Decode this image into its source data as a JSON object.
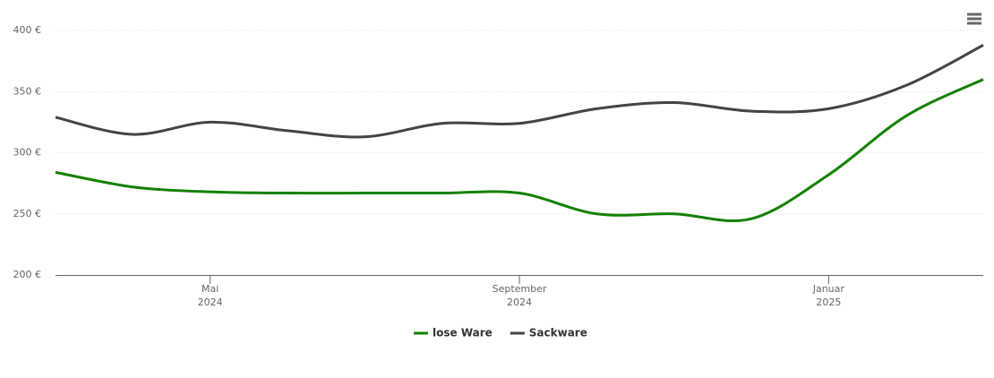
{
  "chart_data": {
    "type": "line",
    "x": [
      "2024-03",
      "2024-04",
      "2024-05",
      "2024-06",
      "2024-07",
      "2024-08",
      "2024-09",
      "2024-10",
      "2024-11",
      "2024-12",
      "2025-01",
      "2025-02",
      "2025-03"
    ],
    "xlim": [
      "2024-03",
      "2025-03"
    ],
    "xticks": [
      {
        "value": "2024-05",
        "label": [
          "Mai",
          "2024"
        ]
      },
      {
        "value": "2024-09",
        "label": [
          "September",
          "2024"
        ]
      },
      {
        "value": "2025-01",
        "label": [
          "Januar",
          "2025"
        ]
      }
    ],
    "ylim": [
      200,
      400
    ],
    "yticks": [
      {
        "value": 200,
        "label": "200 €"
      },
      {
        "value": 250,
        "label": "250 €"
      },
      {
        "value": 300,
        "label": "300 €"
      },
      {
        "value": 350,
        "label": "350 €"
      },
      {
        "value": 400,
        "label": "400 €"
      }
    ],
    "grid": true,
    "legend": "bottom",
    "series": [
      {
        "name": "lose Ware",
        "color": "#138000",
        "values": [
          284,
          272,
          268,
          267,
          267,
          267,
          267,
          250,
          250,
          246,
          282,
          330,
          360
        ]
      },
      {
        "name": "Sackware",
        "color": "#434348",
        "values": [
          329,
          315,
          325,
          318,
          313,
          324,
          324,
          336,
          341,
          334,
          336,
          355,
          388
        ]
      }
    ]
  }
}
